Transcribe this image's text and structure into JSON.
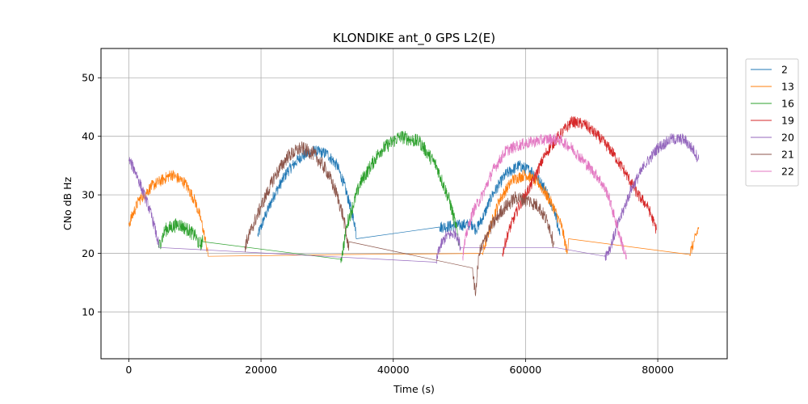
{
  "chart_data": {
    "type": "line",
    "title": "KLONDIKE ant_0 GPS L2(E)",
    "xlabel": "Time (s)",
    "ylabel": "CNo dB Hz",
    "xlim": [
      -4200,
      90500
    ],
    "ylim": [
      2,
      55
    ],
    "xticks": [
      0,
      20000,
      40000,
      60000,
      80000
    ],
    "yticks": [
      10,
      20,
      30,
      40,
      50
    ],
    "grid": true,
    "legend_position": "right-outside-top",
    "series": [
      {
        "name": "2",
        "color": "#1f77b4",
        "noise": 1.0,
        "points": [
          [
            19500,
            23
          ],
          [
            20500,
            26
          ],
          [
            22000,
            30
          ],
          [
            24000,
            34
          ],
          [
            26000,
            36.5
          ],
          [
            28000,
            37.5
          ],
          [
            30000,
            37
          ],
          [
            31500,
            35
          ],
          [
            32500,
            32
          ],
          [
            33500,
            28
          ],
          [
            34300,
            24.5
          ],
          [
            34400,
            22.5
          ],
          [
            47000,
            24.5
          ],
          [
            52000,
            25
          ],
          [
            52500,
            24
          ],
          [
            53500,
            26
          ],
          [
            55000,
            30
          ],
          [
            57000,
            33.5
          ],
          [
            59000,
            35
          ],
          [
            61000,
            34
          ],
          [
            63000,
            31
          ],
          [
            64500,
            27
          ],
          [
            65200,
            23
          ]
        ]
      },
      {
        "name": "13",
        "color": "#ff7f0e",
        "noise": 1.0,
        "points": [
          [
            0,
            25
          ],
          [
            1500,
            29
          ],
          [
            3500,
            31.5
          ],
          [
            6500,
            33.5
          ],
          [
            8500,
            32
          ],
          [
            10000,
            29
          ],
          [
            11000,
            25.5
          ],
          [
            11700,
            21.5
          ],
          [
            12000,
            19.5
          ],
          [
            33000,
            19.8
          ],
          [
            53500,
            20
          ],
          [
            54500,
            24
          ],
          [
            56000,
            29
          ],
          [
            58000,
            32.5
          ],
          [
            60000,
            33.5
          ],
          [
            62000,
            32
          ],
          [
            64000,
            28.5
          ],
          [
            65500,
            24.5
          ],
          [
            66300,
            20
          ],
          [
            66500,
            22.5
          ],
          [
            84800,
            19.8
          ],
          [
            85500,
            22
          ],
          [
            86200,
            24.5
          ]
        ]
      },
      {
        "name": "16",
        "color": "#2ca02c",
        "noise": 1.2,
        "points": [
          [
            4500,
            21
          ],
          [
            5500,
            24
          ],
          [
            7500,
            25
          ],
          [
            9000,
            24
          ],
          [
            10000,
            23
          ],
          [
            10700,
            21.5
          ],
          [
            11200,
            22
          ],
          [
            32000,
            19
          ],
          [
            32300,
            20
          ],
          [
            33000,
            25
          ],
          [
            35000,
            32
          ],
          [
            38000,
            37.5
          ],
          [
            41000,
            40
          ],
          [
            44000,
            39
          ],
          [
            46500,
            35
          ],
          [
            48500,
            29
          ],
          [
            49500,
            24.5
          ],
          [
            50000,
            21.5
          ]
        ]
      },
      {
        "name": "19",
        "color": "#d62728",
        "noise": 1.0,
        "points": [
          [
            56500,
            20
          ],
          [
            57500,
            24
          ],
          [
            59000,
            28
          ],
          [
            61000,
            32
          ],
          [
            63000,
            37
          ],
          [
            65000,
            40
          ],
          [
            67000,
            42.5
          ],
          [
            69000,
            42
          ],
          [
            71000,
            40
          ],
          [
            73000,
            37.5
          ],
          [
            75000,
            34
          ],
          [
            77000,
            30
          ],
          [
            78500,
            28
          ],
          [
            79800,
            24
          ]
        ]
      },
      {
        "name": "20",
        "color": "#9467bd",
        "noise": 1.0,
        "points": [
          [
            0,
            36
          ],
          [
            1000,
            34
          ],
          [
            2000,
            31
          ],
          [
            3000,
            28
          ],
          [
            3800,
            25
          ],
          [
            4300,
            22.5
          ],
          [
            4600,
            21
          ],
          [
            46500,
            18.5
          ],
          [
            47000,
            21
          ],
          [
            48000,
            23
          ],
          [
            49500,
            23.5
          ],
          [
            50200,
            21
          ],
          [
            64500,
            21
          ],
          [
            72000,
            19.5
          ],
          [
            72800,
            21
          ],
          [
            74000,
            25
          ],
          [
            76000,
            31
          ],
          [
            78000,
            35
          ],
          [
            80000,
            38
          ],
          [
            82000,
            39.5
          ],
          [
            84000,
            39.5
          ],
          [
            85500,
            37.5
          ],
          [
            86200,
            36
          ]
        ]
      },
      {
        "name": "21",
        "color": "#8c564b",
        "noise": 1.2,
        "points": [
          [
            17500,
            21
          ],
          [
            18500,
            24
          ],
          [
            20000,
            28
          ],
          [
            22000,
            33
          ],
          [
            24000,
            36.5
          ],
          [
            26000,
            38
          ],
          [
            28000,
            37
          ],
          [
            30000,
            34
          ],
          [
            31500,
            30
          ],
          [
            32500,
            26
          ],
          [
            33200,
            21
          ],
          [
            33300,
            22
          ],
          [
            52000,
            17.5
          ],
          [
            52400,
            13
          ],
          [
            53000,
            20
          ],
          [
            54500,
            24
          ],
          [
            56500,
            27.5
          ],
          [
            58500,
            29.5
          ],
          [
            60500,
            29
          ],
          [
            62000,
            28
          ],
          [
            63500,
            25
          ],
          [
            64300,
            21.5
          ]
        ]
      },
      {
        "name": "22",
        "color": "#e377c2",
        "noise": 1.0,
        "points": [
          [
            50500,
            19.5
          ],
          [
            51000,
            23
          ],
          [
            52000,
            27
          ],
          [
            53500,
            30
          ],
          [
            55000,
            34
          ],
          [
            57000,
            37.5
          ],
          [
            59000,
            38.5
          ],
          [
            61000,
            39
          ],
          [
            63000,
            39.5
          ],
          [
            65000,
            39.5
          ],
          [
            67000,
            38
          ],
          [
            69000,
            35.5
          ],
          [
            71000,
            33
          ],
          [
            72500,
            30
          ],
          [
            73500,
            26
          ],
          [
            74500,
            22
          ],
          [
            75300,
            19
          ]
        ]
      }
    ]
  }
}
